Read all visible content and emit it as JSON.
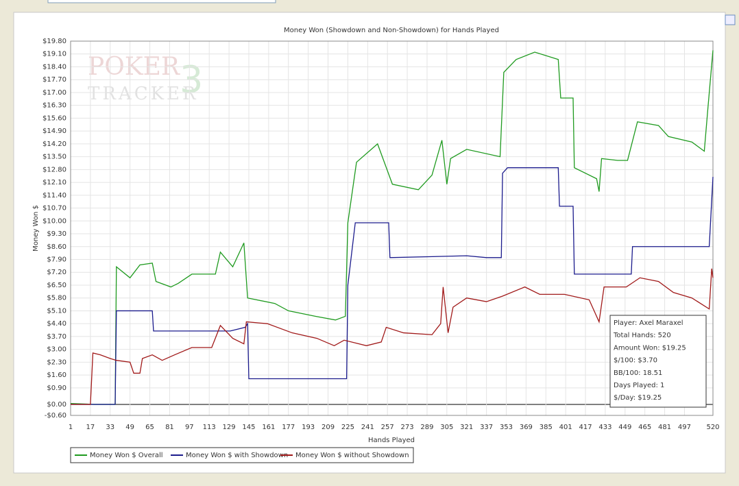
{
  "chart_data": {
    "type": "line",
    "title": "Money Won (Showdown and Non-Showdown) for Hands Played",
    "x_label": "Hands Played",
    "y_label": "Money Won $",
    "watermark": [
      "POKER",
      "TRACKER",
      "3"
    ],
    "grid": true,
    "legend": "bottom-left",
    "xlim": [
      1,
      520
    ],
    "xticks": [
      1,
      17,
      33,
      49,
      65,
      81,
      97,
      113,
      129,
      145,
      161,
      177,
      193,
      209,
      225,
      241,
      257,
      273,
      289,
      305,
      321,
      337,
      353,
      369,
      385,
      401,
      417,
      433,
      449,
      465,
      481,
      497,
      520
    ],
    "ylim": [
      -0.6,
      19.8
    ],
    "yticks": [
      {
        "value": 19.8,
        "label": "$19.80"
      },
      {
        "value": 19.1,
        "label": "$19.10"
      },
      {
        "value": 18.4,
        "label": "$18.40"
      },
      {
        "value": 17.7,
        "label": "$17.70"
      },
      {
        "value": 17.0,
        "label": "$17.00"
      },
      {
        "value": 16.3,
        "label": "$16.30"
      },
      {
        "value": 15.6,
        "label": "$15.60"
      },
      {
        "value": 14.9,
        "label": "$14.90"
      },
      {
        "value": 14.2,
        "label": "$14.20"
      },
      {
        "value": 13.5,
        "label": "$13.50"
      },
      {
        "value": 12.8,
        "label": "$12.80"
      },
      {
        "value": 12.1,
        "label": "$12.10"
      },
      {
        "value": 11.4,
        "label": "$11.40"
      },
      {
        "value": 10.7,
        "label": "$10.70"
      },
      {
        "value": 10.0,
        "label": "$10.00"
      },
      {
        "value": 9.3,
        "label": "$9.30"
      },
      {
        "value": 8.6,
        "label": "$8.60"
      },
      {
        "value": 7.9,
        "label": "$7.90"
      },
      {
        "value": 7.2,
        "label": "$7.20"
      },
      {
        "value": 6.5,
        "label": "$6.50"
      },
      {
        "value": 5.8,
        "label": "$5.80"
      },
      {
        "value": 5.1,
        "label": "$5.10"
      },
      {
        "value": 4.4,
        "label": "$4.40"
      },
      {
        "value": 3.7,
        "label": "$3.70"
      },
      {
        "value": 3.0,
        "label": "$3.00"
      },
      {
        "value": 2.3,
        "label": "$2.30"
      },
      {
        "value": 1.6,
        "label": "$1.60"
      },
      {
        "value": 0.9,
        "label": "$0.90"
      },
      {
        "value": 0,
        "label": "$0.00"
      },
      {
        "value": -0.6,
        "label": "-$0.60"
      }
    ],
    "series": [
      {
        "name": "Money Won $ Overall",
        "color": "#1e9a1e",
        "x": [
          1,
          20,
          37,
          38,
          49,
          57,
          67,
          70,
          82,
          88,
          99,
          118,
          122,
          132,
          141,
          144,
          166,
          177,
          199,
          215,
          223,
          225,
          232,
          249,
          261,
          282,
          293,
          301,
          305,
          308,
          321,
          348,
          351,
          361,
          376,
          395,
          397,
          407,
          408,
          426,
          428,
          430,
          443,
          451,
          459,
          476,
          484,
          503,
          513,
          516,
          520
        ],
        "values": [
          0.05,
          0,
          0,
          7.5,
          6.9,
          7.6,
          7.7,
          6.7,
          6.4,
          6.6,
          7.1,
          7.1,
          8.3,
          7.5,
          8.8,
          5.8,
          5.5,
          5.1,
          4.8,
          4.6,
          4.8,
          9.9,
          13.2,
          14.2,
          12.0,
          11.7,
          12.5,
          14.4,
          12.0,
          13.4,
          13.9,
          13.5,
          18.1,
          18.8,
          19.2,
          18.8,
          16.7,
          16.7,
          12.9,
          12.3,
          11.6,
          13.4,
          13.3,
          13.3,
          15.4,
          15.2,
          14.6,
          14.3,
          13.8,
          16.2,
          19.3
        ]
      },
      {
        "name": "Money Won $ with Showdown",
        "color": "#1a1a8c",
        "x": [
          1,
          37,
          38,
          67,
          68,
          130,
          142,
          144,
          145,
          224,
          225,
          231,
          258,
          259,
          321,
          337,
          349,
          350,
          354,
          395,
          396,
          407,
          408,
          454,
          455,
          517,
          520
        ],
        "values": [
          0,
          0,
          5.1,
          5.1,
          4.0,
          4.0,
          4.2,
          4.4,
          1.4,
          1.4,
          6.5,
          9.9,
          9.9,
          8.0,
          8.1,
          8.0,
          8.0,
          12.6,
          12.9,
          12.9,
          10.8,
          10.8,
          7.1,
          7.1,
          8.6,
          8.6,
          12.4
        ]
      },
      {
        "name": "Money Won $ without Showdown",
        "color": "#a01818",
        "x": [
          1,
          17,
          19,
          25,
          33,
          38,
          49,
          52,
          57,
          59,
          67,
          75,
          85,
          99,
          115,
          122,
          132,
          141,
          143,
          160,
          180,
          200,
          214,
          222,
          240,
          252,
          256,
          270,
          293,
          300,
          302,
          306,
          310,
          321,
          337,
          350,
          368,
          380,
          400,
          420,
          428,
          432,
          450,
          461,
          476,
          488,
          503,
          517,
          519,
          520
        ],
        "values": [
          0,
          0,
          2.8,
          2.7,
          2.5,
          2.4,
          2.3,
          1.7,
          1.7,
          2.5,
          2.7,
          2.4,
          2.7,
          3.1,
          3.1,
          4.3,
          3.6,
          3.3,
          4.5,
          4.4,
          3.9,
          3.6,
          3.2,
          3.5,
          3.2,
          3.4,
          4.2,
          3.9,
          3.8,
          4.4,
          6.4,
          3.9,
          5.3,
          5.8,
          5.6,
          5.9,
          6.4,
          6.0,
          6.0,
          5.7,
          4.5,
          6.4,
          6.4,
          6.9,
          6.7,
          6.1,
          5.8,
          5.2,
          7.4,
          6.9
        ]
      }
    ],
    "info_box": [
      "Player: Axel Maraxel",
      "Total Hands: 520",
      "Amount Won: $19.25",
      "$/100: $3.70",
      "BB/100: 18.51",
      "Days Played: 1",
      "$/Day: $19.25"
    ]
  }
}
